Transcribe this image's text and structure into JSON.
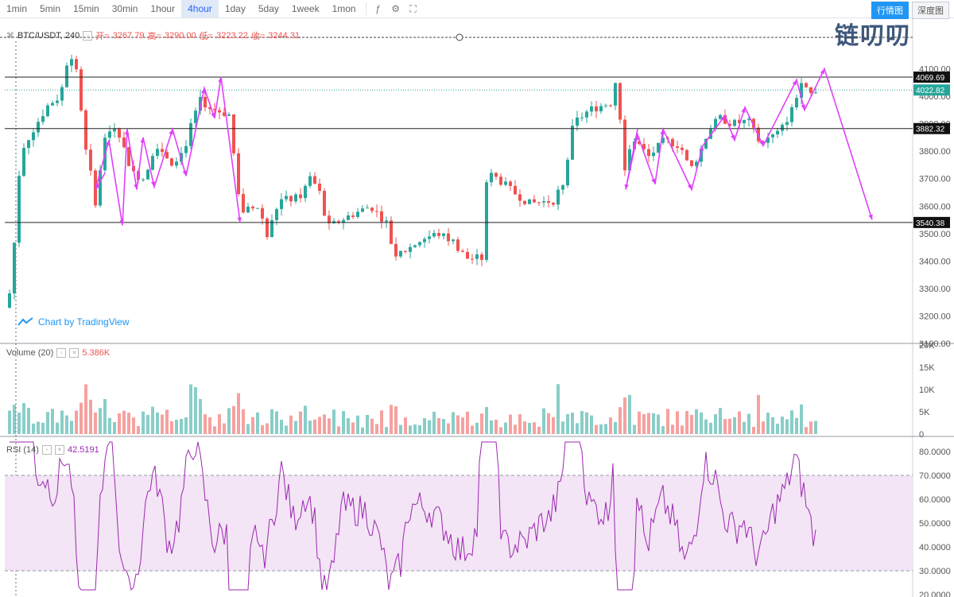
{
  "toolbar": {
    "timeframes": [
      "1min",
      "5min",
      "15min",
      "30min",
      "1hour",
      "4hour",
      "1day",
      "5day",
      "1week",
      "1mon"
    ],
    "active_timeframe": "4hour",
    "tools": [
      "indicator-icon",
      "settings-icon",
      "fullscreen-icon"
    ],
    "tabs": [
      "行情图",
      "深度图"
    ],
    "active_tab": "行情图"
  },
  "logo_text": "链叨叨",
  "symbol": {
    "name": "BTC/USDT, 240",
    "open_label": "开=",
    "open": "3267.79",
    "high_label": "高=",
    "high": "3290.00",
    "low_label": "低=",
    "low": "3223.22",
    "close_label": "收=",
    "close": "3244.31"
  },
  "attribution": "Chart by TradingView",
  "volume_legend": {
    "name": "Volume (20)",
    "value": "5.386K"
  },
  "rsi_legend": {
    "name": "RSI (14)",
    "value": "42.5191"
  },
  "colors": {
    "up": "#26a69a",
    "down": "#ef5350",
    "arrow": "#e040fb",
    "rsi": "#9c27b0",
    "rsi_band": "#f3e5f5",
    "hline": "#222222"
  },
  "chart_data": [
    {
      "type": "candlestick",
      "title": "BTC/USDT, 240",
      "ylim": [
        3100,
        4200
      ],
      "y_ticks": [
        3100,
        3200,
        3300,
        3400,
        3500,
        3600,
        3700,
        3800,
        3900,
        4000,
        4100
      ],
      "y_tick_labels": [
        "3100.00",
        "3200.00",
        "3300.00",
        "3400.00",
        "3500.00",
        "3600.00",
        "3700.00",
        "3800.00",
        "3900.00",
        "4000.00",
        "4100.00"
      ],
      "price_lines": [
        {
          "value": 4069.69,
          "label": "4069.69",
          "style": "black"
        },
        {
          "value": 4022.82,
          "label": "4022.82",
          "style": "last"
        },
        {
          "value": 3882.32,
          "label": "3882.32",
          "style": "black"
        },
        {
          "value": 3540.38,
          "label": "3540.38",
          "style": "black"
        }
      ],
      "series_anchors": [
        [
          0,
          3230
        ],
        [
          8,
          3300
        ],
        [
          20,
          3800
        ],
        [
          40,
          3900
        ],
        [
          55,
          3970
        ],
        [
          70,
          4000
        ],
        [
          80,
          4150
        ],
        [
          90,
          4100
        ],
        [
          100,
          3850
        ],
        [
          115,
          3600
        ],
        [
          125,
          3850
        ],
        [
          140,
          3900
        ],
        [
          160,
          3720
        ],
        [
          175,
          3700
        ],
        [
          190,
          3830
        ],
        [
          210,
          3760
        ],
        [
          225,
          3800
        ],
        [
          245,
          4000
        ],
        [
          255,
          3960
        ],
        [
          285,
          3930
        ],
        [
          290,
          3700
        ],
        [
          300,
          3580
        ],
        [
          320,
          3600
        ],
        [
          330,
          3490
        ],
        [
          345,
          3620
        ],
        [
          370,
          3630
        ],
        [
          385,
          3700
        ],
        [
          395,
          3660
        ],
        [
          405,
          3520
        ],
        [
          430,
          3560
        ],
        [
          460,
          3600
        ],
        [
          480,
          3540
        ],
        [
          490,
          3420
        ],
        [
          505,
          3440
        ],
        [
          525,
          3480
        ],
        [
          545,
          3500
        ],
        [
          565,
          3470
        ],
        [
          580,
          3410
        ],
        [
          600,
          3410
        ],
        [
          607,
          3720
        ],
        [
          620,
          3700
        ],
        [
          640,
          3650
        ],
        [
          660,
          3610
        ],
        [
          690,
          3620
        ],
        [
          705,
          3700
        ],
        [
          715,
          3900
        ],
        [
          735,
          3950
        ],
        [
          765,
          3980
        ],
        [
          772,
          4150
        ],
        [
          776,
          3700
        ],
        [
          790,
          3850
        ],
        [
          810,
          3780
        ],
        [
          830,
          3840
        ],
        [
          850,
          3820
        ],
        [
          862,
          3730
        ],
        [
          875,
          3800
        ],
        [
          885,
          3880
        ],
        [
          900,
          3920
        ],
        [
          915,
          3900
        ],
        [
          935,
          3910
        ],
        [
          950,
          3830
        ],
        [
          975,
          3870
        ],
        [
          990,
          3950
        ],
        [
          1000,
          4040
        ],
        [
          1015,
          4000
        ]
      ],
      "candles": 160,
      "projection_arrows": [
        {
          "from": [
            0,
            3540
          ],
          "to": [
            0,
            3540
          ]
        }
      ]
    },
    {
      "type": "bar",
      "title": "Volume (20)",
      "ylim": [
        0,
        20000
      ],
      "y_tick_labels": [
        "0",
        "5K",
        "10K",
        "15K",
        "20K"
      ],
      "last_value": "5.386K"
    },
    {
      "type": "line",
      "title": "RSI (14)",
      "ylim": [
        20,
        85
      ],
      "band": [
        30,
        70
      ],
      "y_tick_labels": [
        "20.0000",
        "30.0000",
        "40.0000",
        "50.0000",
        "60.0000",
        "70.0000",
        "80.0000"
      ],
      "last_value": "42.5191"
    }
  ]
}
